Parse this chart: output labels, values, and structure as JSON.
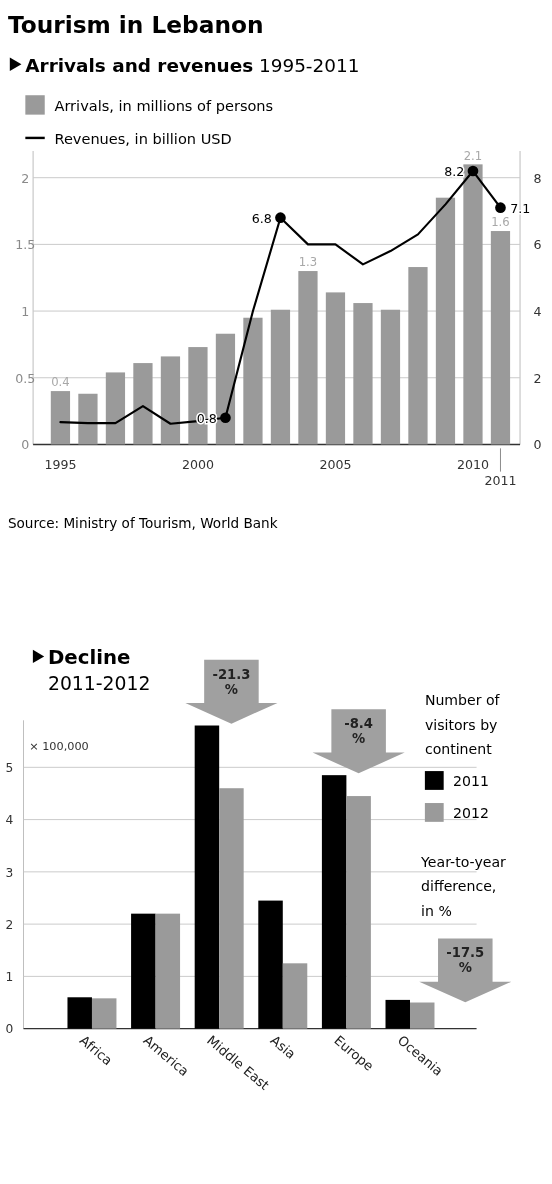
{
  "chart_data": [
    {
      "type": "bar",
      "title": "Tourism in Lebanon",
      "subtitle": "Arrivals and revenues 1995-2011",
      "categories": [
        "1995",
        null,
        null,
        null,
        null,
        "2000",
        null,
        null,
        null,
        null,
        "2005",
        null,
        null,
        null,
        null,
        "2010",
        "2011"
      ],
      "series": [
        {
          "name": "Arrivals, in millions of persons",
          "color": "#9a9a9a",
          "values": [
            0.4,
            0.38,
            0.54,
            0.61,
            0.66,
            0.73,
            0.83,
            0.95,
            1.01,
            1.3,
            1.14,
            1.06,
            1.01,
            1.33,
            1.85,
            2.1,
            1.6
          ],
          "value_labels": [
            "0.4",
            null,
            null,
            null,
            null,
            null,
            null,
            null,
            null,
            "1.3",
            null,
            null,
            null,
            null,
            null,
            "2.1",
            "1.6"
          ]
        },
        {
          "name": "Revenues, in billion USD",
          "type": "line",
          "axis": "y2",
          "color": "#000000",
          "values": [
            0.67,
            0.64,
            0.64,
            1.15,
            0.62,
            0.7,
            0.8,
            4.0,
            6.8,
            6.0,
            6.0,
            5.4,
            5.8,
            6.3,
            7.2,
            8.2,
            7.1
          ],
          "value_labels": [
            null,
            null,
            null,
            null,
            null,
            null,
            "0.8",
            null,
            "6.8",
            null,
            null,
            null,
            null,
            null,
            null,
            "8.2",
            "7.1"
          ]
        }
      ],
      "ylim": [
        0,
        2.2
      ],
      "yticks": [
        0,
        0.5,
        1,
        1.5,
        2
      ],
      "y2lim": [
        0,
        8.8
      ],
      "y2ticks": [
        0,
        2,
        4,
        6,
        8
      ],
      "grid": "y",
      "legend": "top left",
      "annotations": [
        "Source: Ministry of Tourism, World Bank"
      ]
    },
    {
      "type": "bar",
      "title": "Decline 2011-2012",
      "ylabel": "× 100,000",
      "legend_title": "Number of visitors by continent",
      "categories": [
        "Africa",
        "America",
        "Middle East",
        "Asia",
        "Europe",
        "Oceania"
      ],
      "series": [
        {
          "name": "2011",
          "color": "#000000",
          "values": [
            0.6,
            2.2,
            5.8,
            2.45,
            4.85,
            0.55
          ]
        },
        {
          "name": "2012",
          "color": "#9a9a9a",
          "values": [
            0.58,
            2.2,
            4.6,
            1.25,
            4.45,
            0.5
          ]
        }
      ],
      "ylim": [
        0,
        5.9
      ],
      "yticks": [
        0,
        1,
        2,
        3,
        4,
        5
      ],
      "grid": "y",
      "legend": "top right",
      "annotations": [
        "-21.3 %",
        "-8.4 %",
        "Year-to-year difference, in %",
        "-17.5 %"
      ]
    }
  ]
}
